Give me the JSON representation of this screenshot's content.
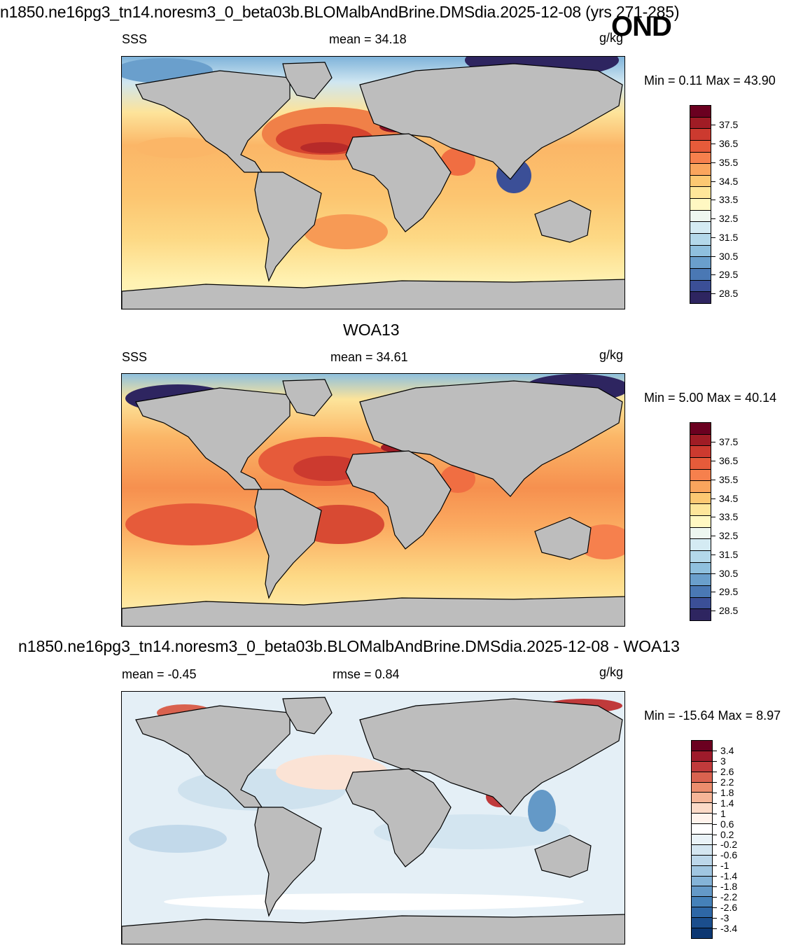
{
  "header": {
    "title": "n1850.ne16pg3_tn14.noresm3_0_beta03b.BLOMalbAndBrine.DMSdia.2025-12-08 (yrs 271-285)",
    "season": "OND"
  },
  "panels": {
    "model": {
      "variable": "SSS",
      "mean_text": "mean =  34.18",
      "units": "g/kg",
      "minmax_text": "Min =   0.11 Max =  43.90"
    },
    "obs": {
      "title": "WOA13",
      "variable": "SSS",
      "mean_text": "mean =  34.61",
      "units": "g/kg",
      "minmax_text": "Min =   5.00 Max =  40.14"
    },
    "diff": {
      "title": "n1850.ne16pg3_tn14.noresm3_0_beta03b.BLOMalbAndBrine.DMSdia.2025-12-08 - WOA13",
      "mean_text": "mean =  -0.45",
      "rmse_text": "rmse =   0.84",
      "units": "g/kg",
      "minmax_text": "Min = -15.64 Max =   8.97"
    }
  },
  "colorbars": {
    "salinity": {
      "colors": [
        "#6b0020",
        "#a01c25",
        "#cc3a2f",
        "#e65b3a",
        "#f6804d",
        "#faa55d",
        "#fcc872",
        "#fee69a",
        "#fff8c2",
        "#eef7f0",
        "#d4ebf3",
        "#b3d8ea",
        "#8fc0de",
        "#6a9fcc",
        "#4a78b4",
        "#3b4f97",
        "#2e2560"
      ],
      "labels": [
        "37.5",
        "36.5",
        "35.5",
        "34.5",
        "33.5",
        "32.5",
        "31.5",
        "30.5",
        "29.5",
        "28.5"
      ]
    },
    "difference": {
      "colors": [
        "#6b0020",
        "#9e1b2b",
        "#c03a3b",
        "#d9624f",
        "#eb8d6d",
        "#f6b597",
        "#fcdac7",
        "#fff3ec",
        "#ffffff",
        "#eaf3f8",
        "#d4e6f1",
        "#bcd7ea",
        "#a0c6e1",
        "#84b3d7",
        "#6499c7",
        "#4581b9",
        "#2e67a6",
        "#1b4e8d",
        "#0c3772"
      ],
      "labels": [
        "3.4",
        "3",
        "2.6",
        "2.2",
        "1.8",
        "1.4",
        "1",
        "0.6",
        "0.2",
        "-0.2",
        "-0.6",
        "-1",
        "-1.4",
        "-1.8",
        "-2.2",
        "-2.6",
        "-3",
        "-3.4"
      ]
    }
  }
}
